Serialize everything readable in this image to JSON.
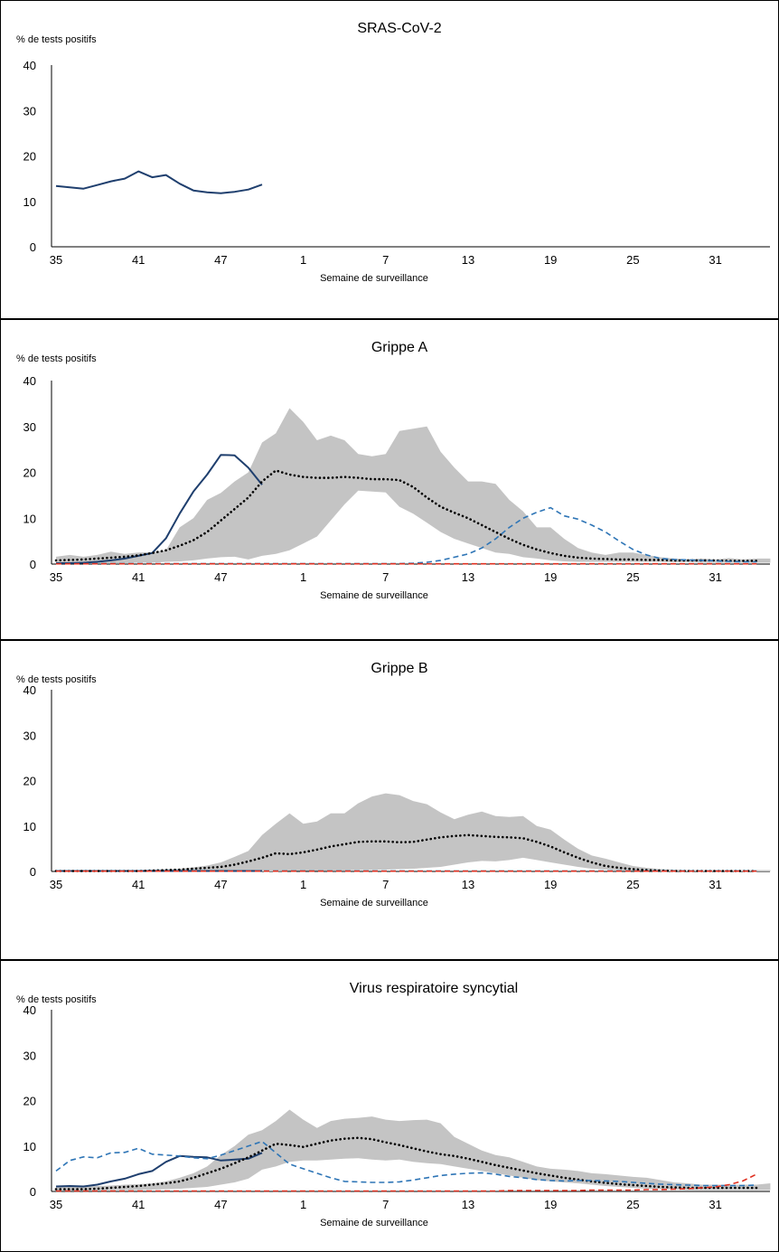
{
  "chart_data": [
    {
      "type": "line",
      "title": "SRAS-CoV-2",
      "ylabel": "% de tests positifs",
      "xlabel": "Semaine de surveillance",
      "ylim": [
        0,
        40
      ],
      "yticks": [
        "0",
        "10",
        "20",
        "30",
        "40"
      ],
      "xticks": [
        "35",
        "41",
        "47",
        "1",
        "7",
        "13",
        "19",
        "25",
        "31"
      ],
      "grid": false,
      "series": [
        {
          "style": "solid",
          "color": "#1f3f6e",
          "values": [
            13.4,
            13.1,
            12.8,
            13.6,
            14.4,
            15.0,
            16.6,
            15.3,
            15.8,
            13.9,
            12.4,
            12.0,
            11.8,
            12.1,
            12.6,
            13.7
          ]
        }
      ]
    },
    {
      "type": "line",
      "title": "Grippe A",
      "ylabel": "% de tests positifs",
      "xlabel": "Semaine de surveillance",
      "ylim": [
        0,
        40
      ],
      "yticks": [
        "0",
        "10",
        "20",
        "30",
        "40"
      ],
      "xticks": [
        "35",
        "41",
        "47",
        "1",
        "7",
        "13",
        "19",
        "25",
        "31"
      ],
      "grid": false,
      "band_color": "#c4c4c4",
      "band_upper": [
        1.6,
        2.0,
        1.6,
        2.0,
        2.7,
        2.2,
        2.5,
        2.6,
        3.0,
        8.0,
        10.0,
        14.0,
        15.5,
        18.0,
        20.0,
        26.5,
        28.5,
        34.0,
        31.0,
        27.0,
        28.0,
        27.0,
        24.0,
        23.5,
        24.0,
        29.0,
        29.5,
        30.0,
        24.5,
        21.0,
        18.0,
        18.0,
        17.5,
        14.0,
        11.5,
        8.0,
        8.0,
        5.5,
        3.5,
        2.5,
        2.0,
        2.5,
        2.5,
        2.0,
        1.5,
        1.2,
        1.0,
        1.2,
        1.0,
        1.3,
        1.0,
        1.2,
        1.2
      ],
      "band_lower": [
        0.2,
        0.2,
        0.2,
        0.2,
        0.2,
        0.2,
        0.3,
        0.3,
        0.5,
        0.6,
        0.8,
        1.2,
        1.5,
        1.6,
        1.0,
        1.8,
        2.2,
        3.0,
        4.5,
        6.0,
        9.5,
        13.0,
        16.0,
        15.8,
        15.6,
        12.5,
        11.0,
        9.0,
        7.0,
        5.5,
        4.5,
        3.5,
        2.5,
        2.2,
        1.5,
        1.2,
        0.8,
        0.6,
        0.5,
        0.5,
        0.5,
        0.5,
        0.5,
        0.5,
        0.5,
        0.4,
        0.4,
        0.3,
        0.3,
        0.3,
        0.3,
        0.3,
        0.3
      ],
      "series": [
        {
          "style": "solid",
          "color": "#1f3f6e",
          "values": [
            0.2,
            0.2,
            0.3,
            0.5,
            0.8,
            1.2,
            1.8,
            2.4,
            5.6,
            11.0,
            15.8,
            19.5,
            23.8,
            23.7,
            21.0,
            17.3
          ]
        },
        {
          "style": "dotted",
          "color": "#000000",
          "values": [
            0.8,
            0.9,
            1.0,
            1.2,
            1.4,
            1.6,
            1.9,
            2.4,
            3.0,
            4.0,
            5.2,
            7.0,
            9.5,
            12.0,
            14.5,
            18.0,
            20.4,
            19.5,
            19.0,
            18.8,
            18.8,
            19.0,
            18.8,
            18.5,
            18.5,
            18.3,
            16.8,
            14.5,
            12.5,
            11.2,
            10.0,
            8.5,
            7.0,
            5.5,
            4.2,
            3.2,
            2.4,
            1.8,
            1.4,
            1.2,
            1.1,
            1.0,
            1.0,
            0.9,
            0.9,
            0.8,
            0.8,
            0.8,
            0.8,
            0.7,
            0.7,
            0.7
          ]
        },
        {
          "style": "dashed",
          "color": "#2e75b6",
          "values": [
            0.1,
            0.1,
            0.1,
            0.1,
            0.1,
            0.1,
            0.1,
            0.1,
            0.1,
            0.1,
            0.1,
            0.1,
            0.1,
            0.1,
            0.1,
            0.1,
            0.1,
            0.1,
            0.1,
            0.1,
            0.1,
            0.1,
            0.1,
            0.1,
            0.1,
            0.1,
            0.2,
            0.4,
            0.8,
            1.5,
            2.2,
            3.5,
            5.5,
            8.0,
            10.0,
            11.3,
            12.3,
            10.5,
            9.8,
            8.5,
            7.0,
            5.0,
            3.2,
            2.0,
            1.2,
            1.0,
            0.9,
            0.8,
            0.7,
            0.6,
            0.5,
            0.5
          ]
        },
        {
          "style": "dashed",
          "color": "#e03020",
          "values": [
            0.05,
            0.05,
            0.05,
            0.05,
            0.05,
            0.05,
            0.05,
            0.05,
            0.05,
            0.05,
            0.05,
            0.05,
            0.05,
            0.05,
            0.05,
            0.05,
            0.05,
            0.05,
            0.05,
            0.05,
            0.05,
            0.05,
            0.05,
            0.05,
            0.05,
            0.05,
            0.05,
            0.05,
            0.05,
            0.05,
            0.05,
            0.05,
            0.05,
            0.05,
            0.05,
            0.05,
            0.05,
            0.05,
            0.05,
            0.05,
            0.05,
            0.05,
            0.05,
            0.05,
            0.05,
            0.05,
            0.05,
            0.05,
            0.05,
            0.05,
            0.05,
            0.05
          ]
        }
      ]
    },
    {
      "type": "line",
      "title": "Grippe B",
      "ylabel": "% de tests positifs",
      "xlabel": "Semaine de surveillance",
      "ylim": [
        0,
        40
      ],
      "yticks": [
        "0",
        "10",
        "20",
        "30",
        "40"
      ],
      "xticks": [
        "35",
        "41",
        "47",
        "1",
        "7",
        "13",
        "19",
        "25",
        "31"
      ],
      "grid": false,
      "band_color": "#c4c4c4",
      "band_upper": [
        0.3,
        0.3,
        0.3,
        0.3,
        0.3,
        0.3,
        0.3,
        0.4,
        0.5,
        0.6,
        0.9,
        1.3,
        2.0,
        3.2,
        4.5,
        8.0,
        10.5,
        12.8,
        10.5,
        11.0,
        12.8,
        12.8,
        15.0,
        16.5,
        17.2,
        16.8,
        15.5,
        14.8,
        13.0,
        11.5,
        12.5,
        13.2,
        12.2,
        12.0,
        12.2,
        10.0,
        9.2,
        7.0,
        5.0,
        3.5,
        2.8,
        2.0,
        1.2,
        0.8,
        0.5,
        0.4,
        0.3,
        0.3,
        0.3,
        0.3,
        0.3,
        0.3,
        0.3
      ],
      "band_lower": [
        0.0,
        0.0,
        0.0,
        0.0,
        0.0,
        0.0,
        0.0,
        0.0,
        0.0,
        0.0,
        0.0,
        0.0,
        0.0,
        0.0,
        0.0,
        0.0,
        0.0,
        0.1,
        0.1,
        0.1,
        0.2,
        0.2,
        0.3,
        0.3,
        0.4,
        0.5,
        0.6,
        0.8,
        1.0,
        1.5,
        2.0,
        2.3,
        2.2,
        2.5,
        3.0,
        2.5,
        2.0,
        1.5,
        1.0,
        0.6,
        0.4,
        0.2,
        0.1,
        0.1,
        0.0,
        0.0,
        0.0,
        0.0,
        0.0,
        0.0,
        0.0,
        0.0,
        0.0
      ],
      "series": [
        {
          "style": "solid",
          "color": "#1f3f6e",
          "values": [
            0.1,
            0.1,
            0.1,
            0.1,
            0.1,
            0.1,
            0.1,
            0.1,
            0.1,
            0.1,
            0.1,
            0.1,
            0.1,
            0.1,
            0.1,
            0.1
          ]
        },
        {
          "style": "dotted",
          "color": "#000000",
          "values": [
            0.1,
            0.1,
            0.1,
            0.1,
            0.1,
            0.1,
            0.1,
            0.2,
            0.3,
            0.4,
            0.6,
            0.8,
            1.0,
            1.5,
            2.2,
            3.0,
            4.0,
            3.8,
            4.2,
            4.8,
            5.5,
            6.0,
            6.5,
            6.6,
            6.6,
            6.4,
            6.5,
            7.0,
            7.5,
            7.8,
            8.0,
            7.8,
            7.6,
            7.5,
            7.3,
            6.5,
            5.5,
            4.2,
            3.0,
            2.0,
            1.2,
            0.8,
            0.5,
            0.3,
            0.2,
            0.1,
            0.1,
            0.1,
            0.1,
            0.1,
            0.1,
            0.1
          ]
        },
        {
          "style": "dashed",
          "color": "#2e75b6",
          "values": [
            0.1,
            0.1,
            0.1,
            0.1,
            0.1,
            0.1,
            0.1,
            0.1,
            0.1,
            0.1,
            0.1,
            0.1,
            0.1,
            0.1,
            0.1,
            0.1,
            0.1,
            0.1,
            0.1,
            0.1,
            0.1,
            0.1,
            0.1,
            0.1,
            0.1,
            0.1,
            0.1,
            0.1,
            0.1,
            0.1,
            0.1,
            0.1,
            0.1,
            0.1,
            0.1,
            0.1,
            0.1,
            0.1,
            0.1,
            0.1,
            0.1,
            0.1,
            0.1,
            0.1,
            0.1,
            0.1,
            0.1,
            0.1,
            0.1,
            0.1,
            0.1,
            0.1
          ]
        },
        {
          "style": "dashed",
          "color": "#e03020",
          "values": [
            0.05,
            0.05,
            0.05,
            0.05,
            0.05,
            0.05,
            0.05,
            0.05,
            0.05,
            0.05,
            0.05,
            0.05,
            0.05,
            0.05,
            0.05,
            0.05,
            0.05,
            0.05,
            0.05,
            0.05,
            0.05,
            0.05,
            0.05,
            0.05,
            0.05,
            0.05,
            0.05,
            0.05,
            0.05,
            0.05,
            0.05,
            0.05,
            0.05,
            0.05,
            0.05,
            0.05,
            0.05,
            0.05,
            0.05,
            0.05,
            0.05,
            0.05,
            0.05,
            0.05,
            0.05,
            0.05,
            0.05,
            0.05,
            0.05,
            0.05,
            0.05,
            0.05
          ]
        }
      ]
    },
    {
      "type": "line",
      "title": "Virus respiratoire syncytial",
      "ylabel": "% de tests positifs",
      "xlabel": "Semaine de surveillance",
      "ylim": [
        0,
        40
      ],
      "yticks": [
        "0",
        "10",
        "20",
        "30",
        "40"
      ],
      "xticks": [
        "35",
        "41",
        "47",
        "1",
        "7",
        "13",
        "19",
        "25",
        "31"
      ],
      "grid": false,
      "band_color": "#c4c4c4",
      "band_upper": [
        1.2,
        1.2,
        1.2,
        1.2,
        1.3,
        1.5,
        1.6,
        1.8,
        2.2,
        3.0,
        4.0,
        5.5,
        8.0,
        10.0,
        12.5,
        13.5,
        15.5,
        18.0,
        15.8,
        14.0,
        15.5,
        16.0,
        16.2,
        16.5,
        15.8,
        15.5,
        15.7,
        15.8,
        15.0,
        12.0,
        10.5,
        9.0,
        8.0,
        7.5,
        6.5,
        5.5,
        5.0,
        4.8,
        4.5,
        4.0,
        3.8,
        3.5,
        3.2,
        3.0,
        2.5,
        2.0,
        1.8,
        1.5,
        1.5,
        1.5,
        1.5,
        1.5,
        1.8
      ],
      "band_lower": [
        0.2,
        0.2,
        0.2,
        0.2,
        0.3,
        0.3,
        0.3,
        0.4,
        0.5,
        0.6,
        0.8,
        1.0,
        1.5,
        2.0,
        2.8,
        4.8,
        5.5,
        6.5,
        6.8,
        6.8,
        7.0,
        7.2,
        7.3,
        7.0,
        6.8,
        7.0,
        6.5,
        6.2,
        6.0,
        5.5,
        5.0,
        4.5,
        4.0,
        3.5,
        3.0,
        2.5,
        2.2,
        2.0,
        1.8,
        1.5,
        1.2,
        1.0,
        0.8,
        0.6,
        0.5,
        0.4,
        0.3,
        0.3,
        0.3,
        0.3,
        0.3,
        0.3,
        0.3
      ],
      "series": [
        {
          "style": "solid",
          "color": "#1f3f6e",
          "values": [
            1.1,
            1.2,
            1.1,
            1.5,
            2.2,
            2.8,
            3.8,
            4.5,
            6.5,
            7.8,
            7.6,
            7.5,
            6.8,
            7.0,
            7.2,
            8.5
          ]
        },
        {
          "style": "dotted",
          "color": "#000000",
          "values": [
            0.5,
            0.5,
            0.5,
            0.6,
            0.8,
            1.0,
            1.2,
            1.5,
            1.8,
            2.2,
            3.0,
            4.0,
            5.0,
            6.2,
            7.5,
            9.0,
            10.5,
            10.2,
            9.8,
            10.5,
            11.2,
            11.6,
            11.8,
            11.5,
            10.8,
            10.2,
            9.5,
            8.8,
            8.2,
            7.8,
            7.2,
            6.5,
            5.8,
            5.2,
            4.6,
            4.0,
            3.5,
            3.0,
            2.6,
            2.2,
            1.9,
            1.6,
            1.4,
            1.2,
            1.0,
            0.9,
            0.8,
            0.8,
            0.8,
            0.8,
            0.8,
            0.8
          ]
        },
        {
          "style": "dashed",
          "color": "#2e75b6",
          "values": [
            4.5,
            6.8,
            7.6,
            7.4,
            8.5,
            8.6,
            9.5,
            8.2,
            8.0,
            7.8,
            7.4,
            7.2,
            8.0,
            9.0,
            10.0,
            11.0,
            8.5,
            6.0,
            5.0,
            4.0,
            3.0,
            2.2,
            2.1,
            2.0,
            2.0,
            2.1,
            2.5,
            3.0,
            3.5,
            3.8,
            4.0,
            4.1,
            3.8,
            3.3,
            3.0,
            2.6,
            2.4,
            2.3,
            2.4,
            2.4,
            2.3,
            2.2,
            2.0,
            1.8,
            1.6,
            1.5,
            1.4,
            1.3,
            1.3,
            1.3,
            1.3,
            1.4
          ]
        },
        {
          "style": "dashed",
          "color": "#e03020",
          "values": [
            0.1,
            0.1,
            0.1,
            0.1,
            0.1,
            0.1,
            0.1,
            0.1,
            0.1,
            0.1,
            0.1,
            0.1,
            0.1,
            0.1,
            0.1,
            0.1,
            0.1,
            0.1,
            0.1,
            0.1,
            0.1,
            0.1,
            0.1,
            0.1,
            0.1,
            0.1,
            0.1,
            0.1,
            0.1,
            0.1,
            0.1,
            0.1,
            0.1,
            0.2,
            0.2,
            0.2,
            0.2,
            0.2,
            0.2,
            0.3,
            0.3,
            0.3,
            0.3,
            0.4,
            0.4,
            0.5,
            0.6,
            0.8,
            1.0,
            1.5,
            2.3,
            3.8
          ]
        }
      ]
    }
  ]
}
